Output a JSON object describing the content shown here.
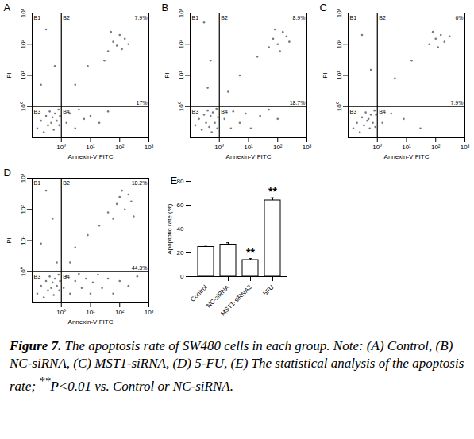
{
  "chart_data": [
    {
      "type": "scatter",
      "title": "A",
      "x_label": "Annexin-V FITC",
      "y_label": "PI",
      "log": true,
      "color": "#222222",
      "xlim": [
        0.1,
        1000
      ],
      "ylim": [
        0.1,
        1000
      ],
      "xticks": [
        {
          "value": 1,
          "label": "10⁰"
        },
        {
          "value": 10,
          "label": "10¹"
        },
        {
          "value": 100,
          "label": "10²"
        },
        {
          "value": 1000,
          "label": "10³"
        }
      ],
      "yticks": [
        {
          "value": 1,
          "label": "10⁰"
        },
        {
          "value": 10,
          "label": "10¹"
        },
        {
          "value": 100,
          "label": "10²"
        },
        {
          "value": 1000,
          "label": "10³"
        }
      ],
      "gate_x": 1,
      "gate_y": 1,
      "quadrant_labels": [
        "B1",
        "B2",
        "B3",
        "B4"
      ],
      "B2_percent": {
        "value": 7.9,
        "label": "7.9%"
      },
      "B4_percent": {
        "value": 17,
        "label": "17%"
      },
      "points": [
        [
          0.15,
          0.2
        ],
        [
          0.2,
          0.35
        ],
        [
          0.25,
          0.15
        ],
        [
          0.3,
          0.5
        ],
        [
          0.35,
          0.25
        ],
        [
          0.4,
          0.7
        ],
        [
          0.45,
          0.3
        ],
        [
          0.5,
          0.45
        ],
        [
          0.55,
          0.18
        ],
        [
          0.6,
          0.6
        ],
        [
          0.7,
          0.35
        ],
        [
          0.8,
          0.8
        ],
        [
          0.85,
          0.25
        ],
        [
          0.9,
          0.5
        ],
        [
          1.5,
          0.3
        ],
        [
          2,
          0.6
        ],
        [
          3,
          0.2
        ],
        [
          4,
          0.8
        ],
        [
          6,
          0.4
        ],
        [
          10,
          0.5
        ],
        [
          20,
          0.3
        ],
        [
          40,
          0.7
        ],
        [
          40,
          60
        ],
        [
          60,
          120
        ],
        [
          80,
          90
        ],
        [
          100,
          200
        ],
        [
          120,
          70
        ],
        [
          150,
          150
        ],
        [
          200,
          100
        ],
        [
          50,
          250
        ],
        [
          30,
          30
        ],
        [
          8,
          20
        ],
        [
          3,
          5
        ],
        [
          0.3,
          300
        ],
        [
          0.6,
          20
        ],
        [
          0.2,
          5
        ]
      ]
    },
    {
      "type": "scatter",
      "title": "B",
      "x_label": "Annexin-V FITC",
      "y_label": "PI",
      "log": true,
      "color": "#222222",
      "xlim": [
        0.1,
        1000
      ],
      "ylim": [
        0.1,
        1000
      ],
      "xticks": [
        {
          "value": 1,
          "label": "10⁰"
        },
        {
          "value": 10,
          "label": "10¹"
        },
        {
          "value": 100,
          "label": "10²"
        },
        {
          "value": 1000,
          "label": "10³"
        }
      ],
      "yticks": [
        {
          "value": 1,
          "label": "10⁰"
        },
        {
          "value": 10,
          "label": "10¹"
        },
        {
          "value": 100,
          "label": "10²"
        },
        {
          "value": 1000,
          "label": "10³"
        }
      ],
      "gate_x": 1,
      "gate_y": 1,
      "quadrant_labels": [
        "B1",
        "B2",
        "B3",
        "B4"
      ],
      "B2_percent": {
        "value": 8.9,
        "label": "8.9%"
      },
      "B4_percent": {
        "value": 18.7,
        "label": "18.7%"
      },
      "points": [
        [
          0.15,
          0.25
        ],
        [
          0.2,
          0.4
        ],
        [
          0.25,
          0.18
        ],
        [
          0.3,
          0.55
        ],
        [
          0.35,
          0.3
        ],
        [
          0.4,
          0.75
        ],
        [
          0.45,
          0.22
        ],
        [
          0.5,
          0.5
        ],
        [
          0.55,
          0.15
        ],
        [
          0.6,
          0.65
        ],
        [
          0.7,
          0.3
        ],
        [
          0.8,
          0.85
        ],
        [
          0.85,
          0.2
        ],
        [
          0.9,
          0.45
        ],
        [
          1.5,
          0.4
        ],
        [
          2.5,
          0.2
        ],
        [
          3,
          0.7
        ],
        [
          5,
          0.3
        ],
        [
          8,
          0.6
        ],
        [
          12,
          0.2
        ],
        [
          25,
          0.5
        ],
        [
          50,
          0.8
        ],
        [
          100,
          0.4
        ],
        [
          50,
          80
        ],
        [
          70,
          150
        ],
        [
          100,
          100
        ],
        [
          150,
          250
        ],
        [
          200,
          180
        ],
        [
          250,
          120
        ],
        [
          120,
          60
        ],
        [
          80,
          300
        ],
        [
          20,
          40
        ],
        [
          5,
          10
        ],
        [
          2,
          3
        ],
        [
          0.3,
          500
        ],
        [
          0.5,
          30
        ],
        [
          0.4,
          4
        ]
      ]
    },
    {
      "type": "scatter",
      "title": "C",
      "x_label": "Annexin-V FITC",
      "y_label": "PI",
      "log": true,
      "color": "#222222",
      "xlim": [
        0.1,
        1000
      ],
      "ylim": [
        0.1,
        1000
      ],
      "xticks": [
        {
          "value": 1,
          "label": "10⁰"
        },
        {
          "value": 10,
          "label": "10¹"
        },
        {
          "value": 100,
          "label": "10²"
        },
        {
          "value": 1000,
          "label": "10³"
        }
      ],
      "yticks": [
        {
          "value": 1,
          "label": "10⁰"
        },
        {
          "value": 10,
          "label": "10¹"
        },
        {
          "value": 100,
          "label": "10²"
        },
        {
          "value": 1000,
          "label": "10³"
        }
      ],
      "gate_x": 1,
      "gate_y": 1,
      "quadrant_labels": [
        "B1",
        "B2",
        "B3",
        "B4"
      ],
      "B2_percent": {
        "value": 6,
        "label": "6%"
      },
      "B4_percent": {
        "value": 7.9,
        "label": "7.9%"
      },
      "points": [
        [
          0.15,
          0.2
        ],
        [
          0.2,
          0.3
        ],
        [
          0.25,
          0.15
        ],
        [
          0.3,
          0.45
        ],
        [
          0.35,
          0.25
        ],
        [
          0.4,
          0.65
        ],
        [
          0.45,
          0.35
        ],
        [
          0.5,
          0.4
        ],
        [
          0.55,
          0.2
        ],
        [
          0.6,
          0.55
        ],
        [
          0.7,
          0.3
        ],
        [
          0.8,
          0.75
        ],
        [
          0.85,
          0.22
        ],
        [
          0.9,
          0.55
        ],
        [
          1.5,
          0.3
        ],
        [
          3,
          0.6
        ],
        [
          8,
          0.4
        ],
        [
          30,
          0.2
        ],
        [
          60,
          100
        ],
        [
          100,
          150
        ],
        [
          150,
          200
        ],
        [
          200,
          120
        ],
        [
          120,
          80
        ],
        [
          80,
          250
        ],
        [
          300,
          180
        ],
        [
          15,
          30
        ],
        [
          4,
          8
        ],
        [
          0.3,
          200
        ],
        [
          0.6,
          15
        ]
      ]
    },
    {
      "type": "scatter",
      "title": "D",
      "x_label": "Annexin-V FITC",
      "y_label": "PI",
      "log": true,
      "color": "#222222",
      "xlim": [
        0.1,
        1000
      ],
      "ylim": [
        0.1,
        1000
      ],
      "xticks": [
        {
          "value": 1,
          "label": "10⁰"
        },
        {
          "value": 10,
          "label": "10¹"
        },
        {
          "value": 100,
          "label": "10²"
        },
        {
          "value": 1000,
          "label": "10³"
        }
      ],
      "yticks": [
        {
          "value": 1,
          "label": "10⁰"
        },
        {
          "value": 10,
          "label": "10¹"
        },
        {
          "value": 100,
          "label": "10²"
        },
        {
          "value": 1000,
          "label": "10³"
        }
      ],
      "gate_x": 1,
      "gate_y": 1,
      "quadrant_labels": [
        "B1",
        "B2",
        "B3",
        "B4"
      ],
      "B2_percent": {
        "value": 18.2,
        "label": "18.2%"
      },
      "B4_percent": {
        "value": 44.3,
        "label": "44.3%"
      },
      "points": [
        [
          0.15,
          0.2
        ],
        [
          0.2,
          0.35
        ],
        [
          0.25,
          0.15
        ],
        [
          0.3,
          0.5
        ],
        [
          0.35,
          0.25
        ],
        [
          0.4,
          0.7
        ],
        [
          0.45,
          0.3
        ],
        [
          0.5,
          0.45
        ],
        [
          0.55,
          0.18
        ],
        [
          0.6,
          0.6
        ],
        [
          0.7,
          0.35
        ],
        [
          0.8,
          0.8
        ],
        [
          0.85,
          0.25
        ],
        [
          0.9,
          0.5
        ],
        [
          1.2,
          0.3
        ],
        [
          1.5,
          0.7
        ],
        [
          2,
          0.2
        ],
        [
          3,
          0.5
        ],
        [
          4,
          0.85
        ],
        [
          5,
          0.3
        ],
        [
          7,
          0.6
        ],
        [
          10,
          0.2
        ],
        [
          12,
          0.45
        ],
        [
          18,
          0.8
        ],
        [
          25,
          0.3
        ],
        [
          40,
          0.6
        ],
        [
          60,
          0.2
        ],
        [
          100,
          0.5
        ],
        [
          200,
          0.35
        ],
        [
          400,
          0.7
        ],
        [
          20,
          30
        ],
        [
          40,
          80
        ],
        [
          60,
          50
        ],
        [
          80,
          150
        ],
        [
          100,
          250
        ],
        [
          150,
          100
        ],
        [
          200,
          300
        ],
        [
          250,
          180
        ],
        [
          300,
          60
        ],
        [
          120,
          400
        ],
        [
          8,
          15
        ],
        [
          3,
          6
        ],
        [
          2,
          2
        ],
        [
          0.3,
          400
        ],
        [
          0.5,
          50
        ],
        [
          0.2,
          8
        ],
        [
          0.7,
          2
        ]
      ]
    },
    {
      "type": "bar",
      "title": "E",
      "y_label": "Apoptotic rate (%)",
      "color": "#ffffff",
      "categories": [
        "Control",
        "NC-siRNA",
        "MST1-siRNA3",
        "5FU"
      ],
      "values": [
        25,
        27,
        14,
        64
      ],
      "errors": [
        1.5,
        1.5,
        1.2,
        2.2
      ],
      "ylim": [
        0,
        80
      ],
      "yticks": [
        0,
        20,
        40,
        60,
        80
      ],
      "annotations": [
        {
          "category": "MST1-siRNA3",
          "text": "**"
        },
        {
          "category": "5FU",
          "text": "**"
        }
      ]
    }
  ],
  "caption": {
    "label": "Figure 7.",
    "text": " The apoptosis rate of SW480 cells in each group. Note: (A) Control, (B) NC-siRNA, (C) MST1-siRNA, (D) 5-FU, (E) The statistical analysis of the apoptosis rate; ",
    "superscript": "**",
    "text_end": "P<0.01 vs. Control or NC-siRNA."
  }
}
